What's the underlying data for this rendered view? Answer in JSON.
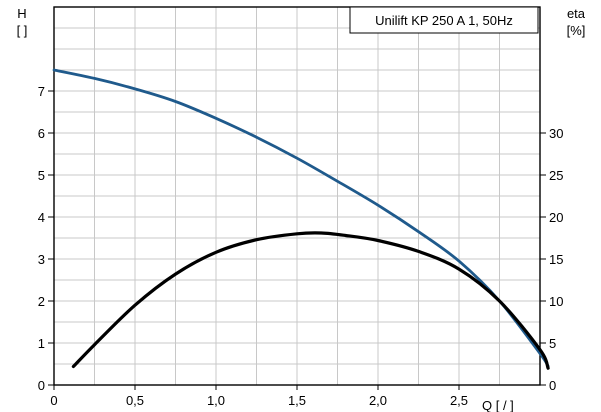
{
  "chart_data": {
    "type": "line",
    "title": "Unilift KP 250 A 1, 50Hz",
    "grid": true,
    "x_axis": {
      "label": "Q [ / ]",
      "range": [
        0,
        3.0
      ],
      "ticks": [
        {
          "value": 0,
          "label": "0"
        },
        {
          "value": 0.5,
          "label": "0,5"
        },
        {
          "value": 1.0,
          "label": "1,0"
        },
        {
          "value": 1.5,
          "label": "1,5"
        },
        {
          "value": 2.0,
          "label": "2,0"
        },
        {
          "value": 2.5,
          "label": "2,5"
        }
      ]
    },
    "y_left": {
      "label_line1": "H",
      "label_line2": "[ ]",
      "range": [
        0,
        9
      ],
      "ticks": [
        {
          "value": 0,
          "label": "0"
        },
        {
          "value": 1,
          "label": "1"
        },
        {
          "value": 2,
          "label": "2"
        },
        {
          "value": 3,
          "label": "3"
        },
        {
          "value": 4,
          "label": "4"
        },
        {
          "value": 5,
          "label": "5"
        },
        {
          "value": 6,
          "label": "6"
        },
        {
          "value": 7,
          "label": "7"
        }
      ]
    },
    "y_right": {
      "label_line1": "eta",
      "label_line2": "[%]",
      "range": [
        0,
        45
      ],
      "ticks": [
        {
          "value": 0,
          "label": "0"
        },
        {
          "value": 5,
          "label": "5"
        },
        {
          "value": 10,
          "label": "10"
        },
        {
          "value": 15,
          "label": "15"
        },
        {
          "value": 20,
          "label": "20"
        },
        {
          "value": 25,
          "label": "25"
        },
        {
          "value": 30,
          "label": "30"
        }
      ]
    },
    "series": [
      {
        "axis": "left",
        "color": "#1f5a8c",
        "x": [
          0,
          0.25,
          0.5,
          0.75,
          1.0,
          1.25,
          1.5,
          1.75,
          2.0,
          2.25,
          2.5,
          2.75,
          3.0,
          3.05
        ],
        "y": [
          7.5,
          7.3,
          7.05,
          6.75,
          6.35,
          5.9,
          5.4,
          4.85,
          4.28,
          3.65,
          2.95,
          2.0,
          0.75,
          0.45
        ]
      },
      {
        "axis": "right",
        "color": "#000000",
        "x": [
          0.12,
          0.25,
          0.5,
          0.75,
          1.0,
          1.25,
          1.5,
          1.65,
          1.8,
          2.0,
          2.25,
          2.5,
          2.75,
          3.0,
          3.05
        ],
        "y": [
          2.2,
          4.8,
          9.5,
          13.2,
          15.8,
          17.3,
          18.0,
          18.1,
          17.8,
          17.2,
          15.9,
          13.8,
          10.0,
          4.2,
          2.0
        ]
      }
    ]
  }
}
